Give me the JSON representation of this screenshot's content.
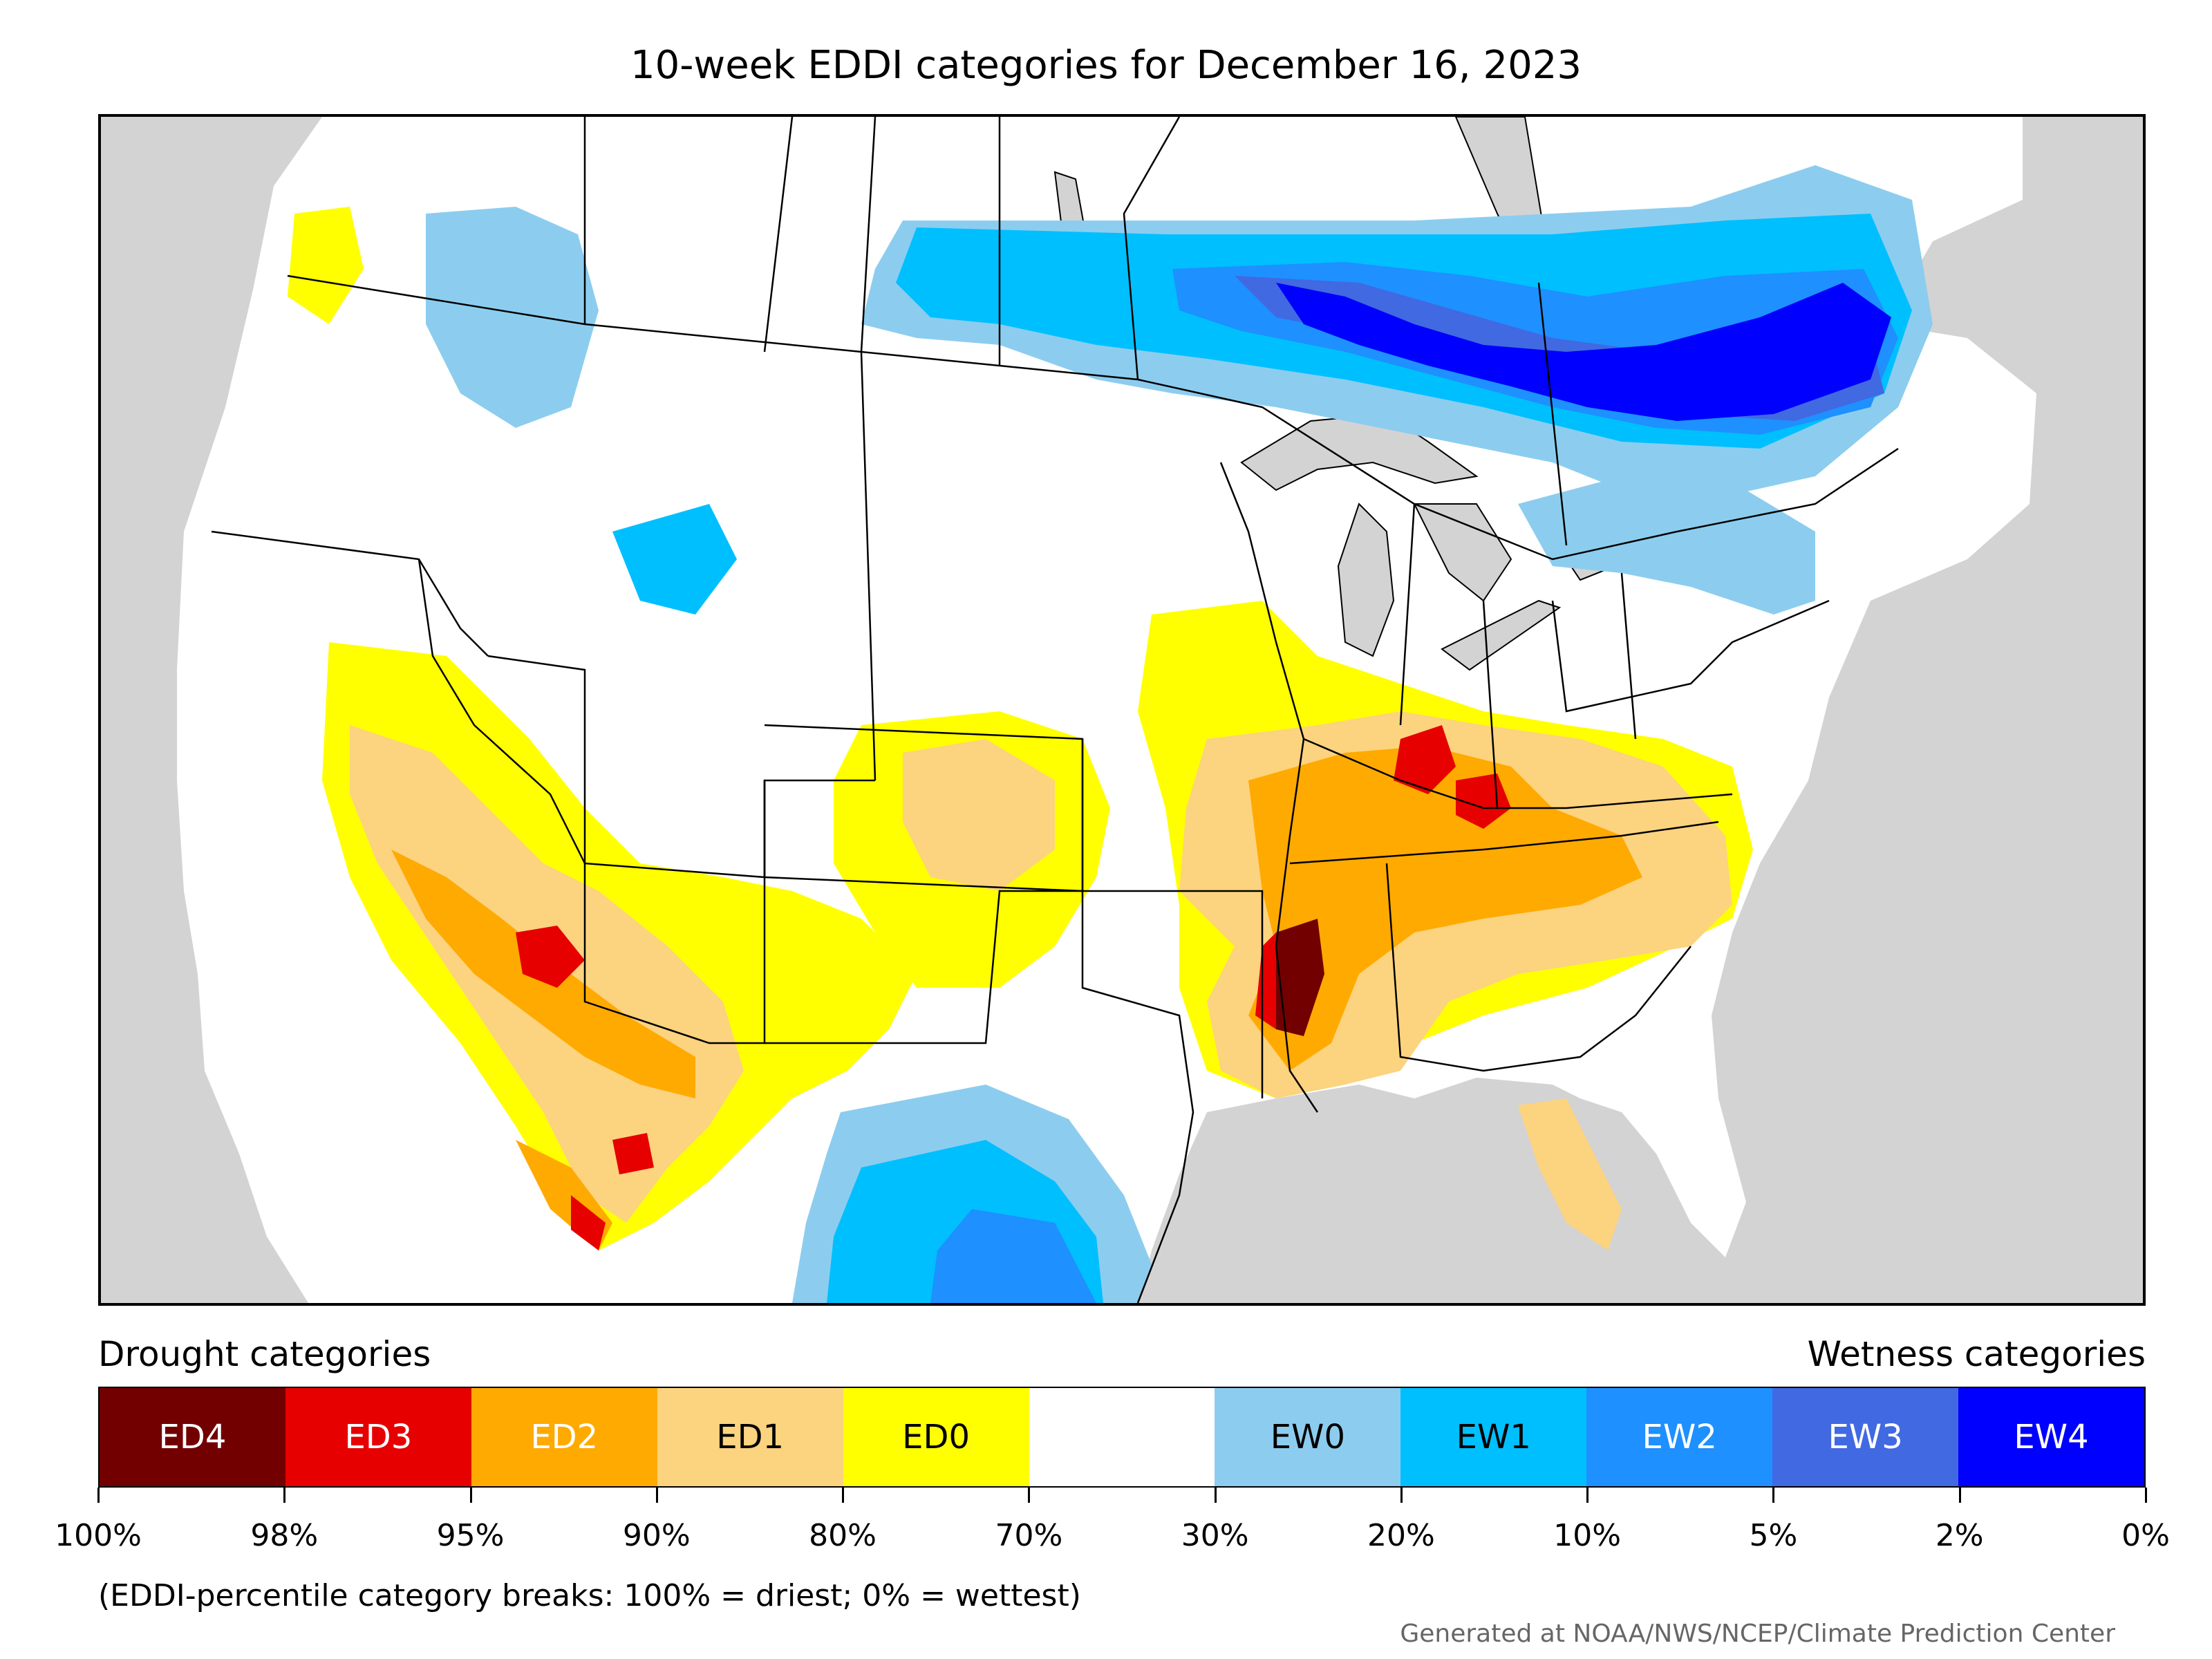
{
  "title": "10-week EDDI categories for December 16, 2023",
  "legend": {
    "drought_header": "Drought categories",
    "wetness_header": "Wetness categories",
    "categories": [
      {
        "label": "ED4",
        "color": "#730000",
        "text_color": "#ffffff"
      },
      {
        "label": "ED3",
        "color": "#e60000",
        "text_color": "#ffffff"
      },
      {
        "label": "ED2",
        "color": "#ffaa00",
        "text_color": "#ffffff"
      },
      {
        "label": "ED1",
        "color": "#fcd37f",
        "text_color": "#000000"
      },
      {
        "label": "ED0",
        "color": "#ffff00",
        "text_color": "#000000"
      },
      {
        "label": "",
        "color": "#ffffff",
        "text_color": "#000000"
      },
      {
        "label": "EW0",
        "color": "#8ccdef",
        "text_color": "#000000"
      },
      {
        "label": "EW1",
        "color": "#00bfff",
        "text_color": "#000000"
      },
      {
        "label": "EW2",
        "color": "#1e90ff",
        "text_color": "#ffffff"
      },
      {
        "label": "EW3",
        "color": "#4169e1",
        "text_color": "#ffffff"
      },
      {
        "label": "EW4",
        "color": "#0000ff",
        "text_color": "#ffffff"
      }
    ],
    "tick_labels": [
      "100%",
      "98%",
      "95%",
      "90%",
      "80%",
      "70%",
      "30%",
      "20%",
      "10%",
      "5%",
      "2%",
      "0%"
    ]
  },
  "note": "(EDDI-percentile category breaks: 100% = driest; 0% = wettest)",
  "credit": "Generated at NOAA/NWS/NCEP/Climate Prediction Center",
  "colors": {
    "ocean": "#d3d3d3",
    "land": "#ffffff",
    "border": "#000000"
  }
}
